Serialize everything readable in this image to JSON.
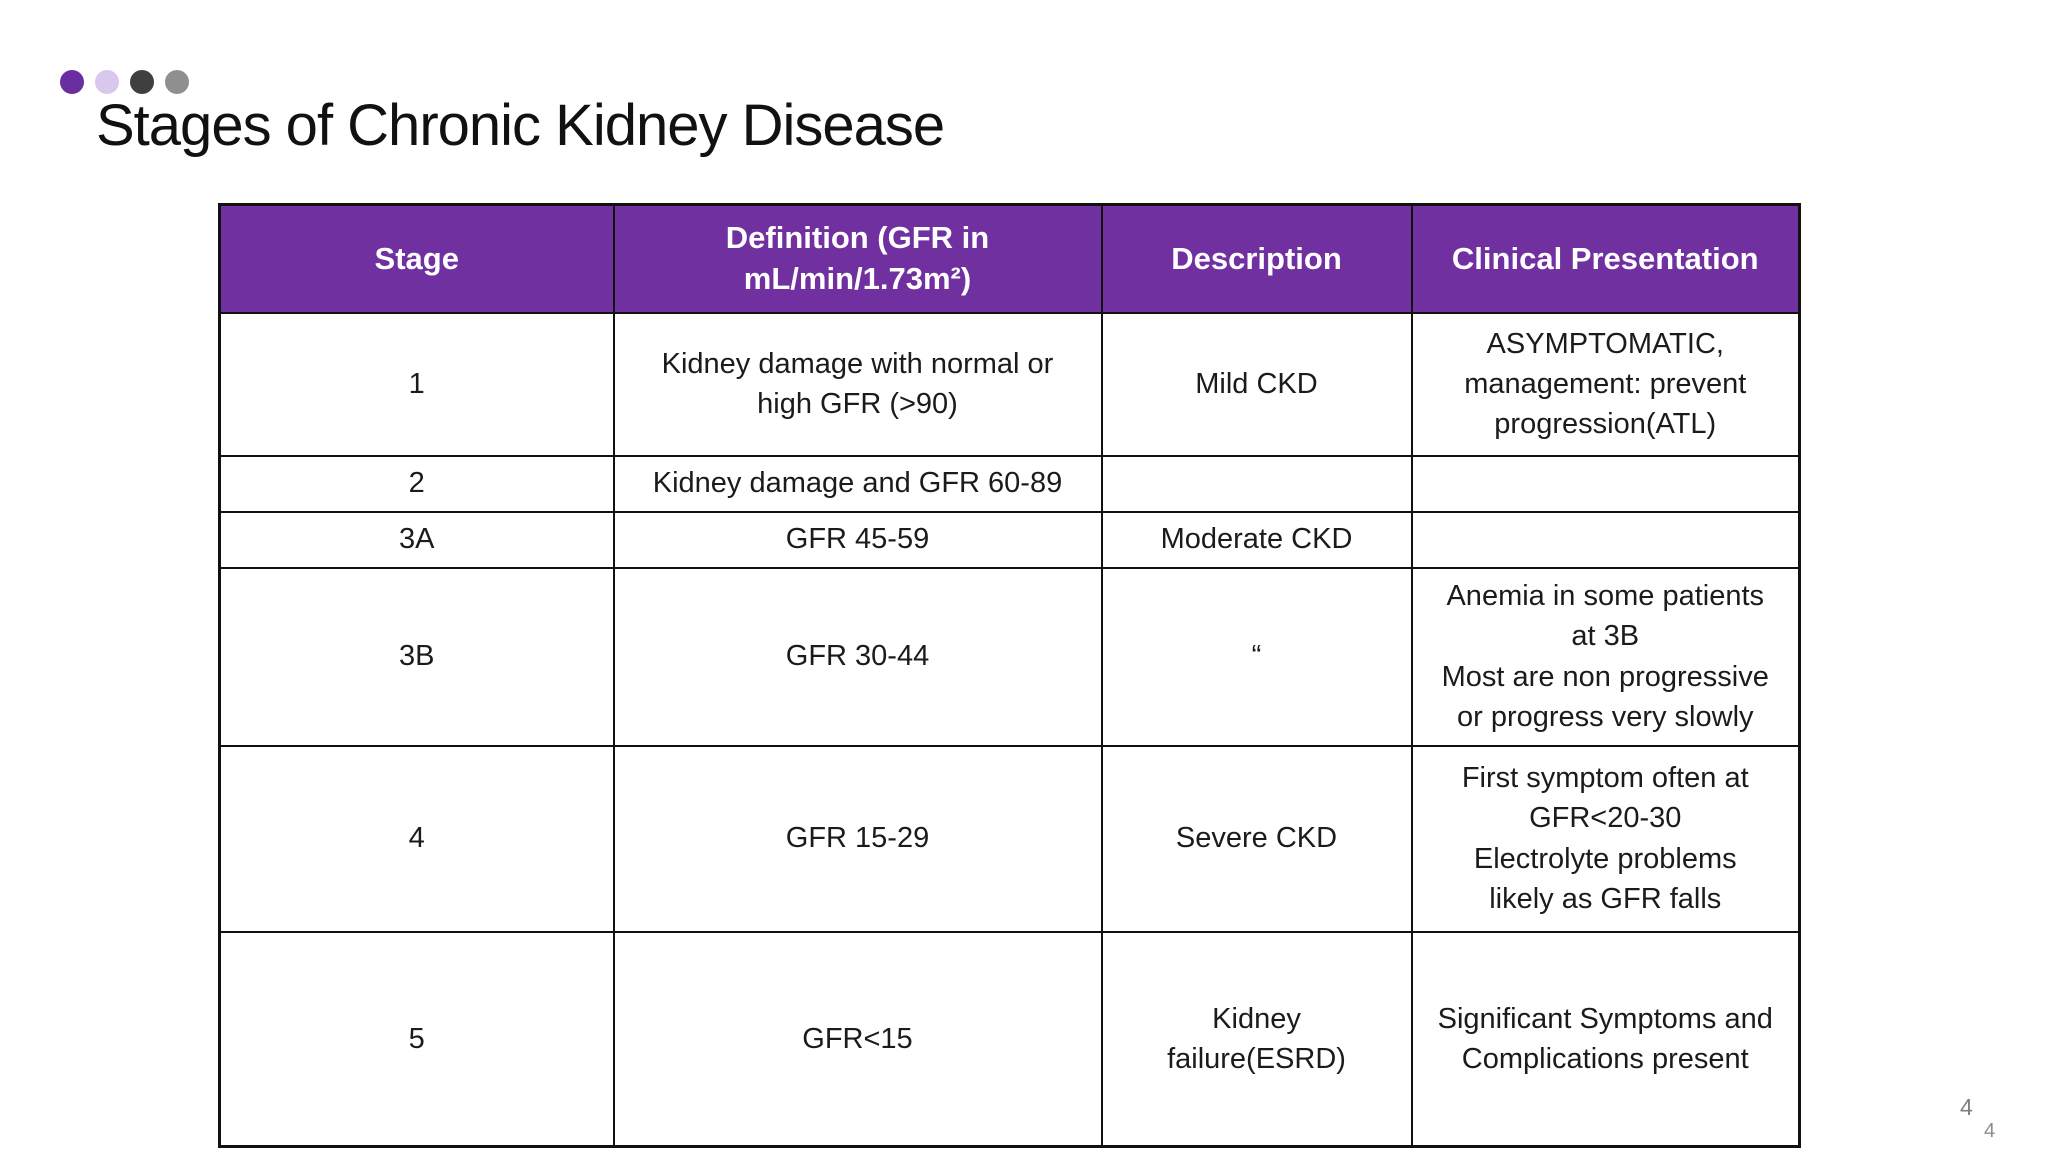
{
  "slide": {
    "title": "Stages of Chronic Kidney Disease",
    "page_number_top": "4",
    "page_number_bottom": "4",
    "colors": {
      "header_purple": "#7030A0",
      "dot_purple": "#6B2EA0",
      "dot_lavender": "#D9C8EE",
      "dot_dark_gray": "#3F3F3F",
      "dot_gray": "#8F8F8F"
    }
  },
  "table": {
    "headers": [
      "Stage",
      "Definition (GFR in\nmL/min/1.73m²)",
      "Description",
      "Clinical Presentation"
    ],
    "rows": [
      {
        "cells": [
          "1",
          "Kidney damage with normal or\nhigh GFR (>90)",
          "Mild CKD",
          "ASYMPTOMATIC,\nmanagement: prevent\nprogression(ATL)"
        ]
      },
      {
        "cells": [
          "2",
          "Kidney damage and GFR 60-89",
          "",
          ""
        ]
      },
      {
        "cells": [
          "3A",
          "GFR 45-59",
          "Moderate CKD",
          ""
        ]
      },
      {
        "cells": [
          "3B",
          "GFR 30-44",
          "“",
          "Anemia in some patients\nat 3B\nMost are non progressive\nor progress very slowly"
        ]
      },
      {
        "cells": [
          "4",
          "GFR 15-29",
          "Severe CKD",
          "First symptom often at\nGFR<20-30\nElectrolyte problems\nlikely as GFR falls"
        ]
      },
      {
        "cells": [
          "5",
          "GFR<15",
          "Kidney\nfailure(ESRD)",
          "Significant Symptoms and\nComplications present"
        ]
      }
    ]
  }
}
